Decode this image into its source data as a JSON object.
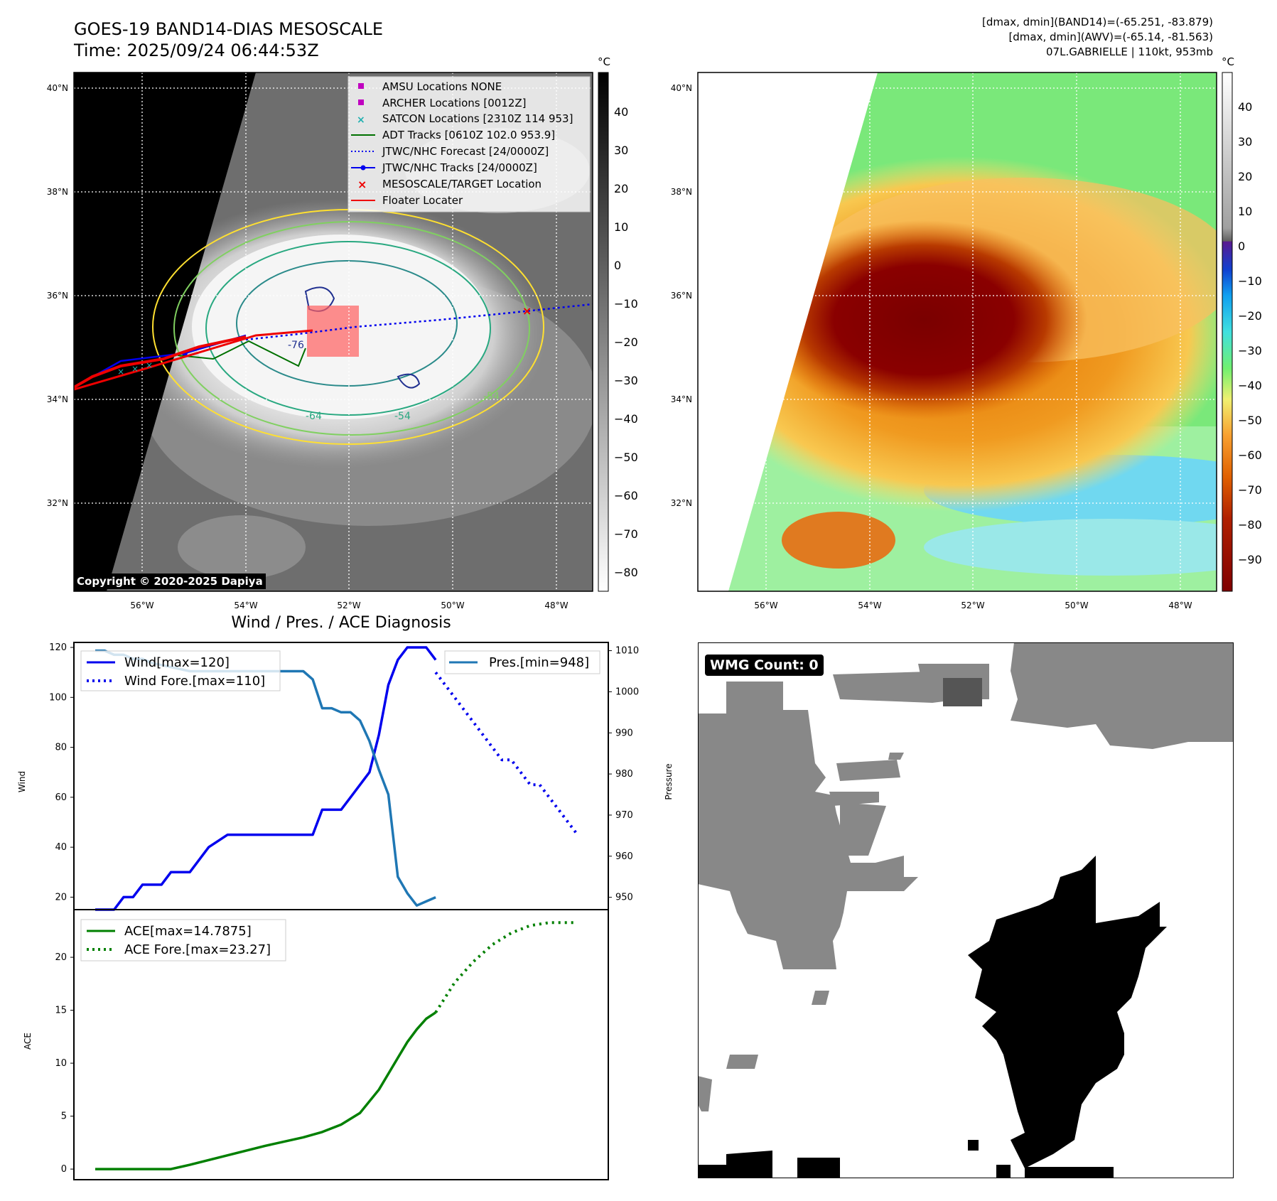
{
  "header": {
    "title_line1": "GOES-19 BAND14-DIAS MESOSCALE",
    "title_line2": "Time: 2025/09/24 06:44:53Z",
    "info_line1": "[dmax, dmin](BAND14)=(-65.251, -83.879)",
    "info_line2": "[dmax, dmin](AWV)=(-65.14, -81.563)",
    "info_line3": "07L.GABRIELLE | 110kt, 953mb"
  },
  "map_left": {
    "lat_ticks": [
      "40°N",
      "38°N",
      "36°N",
      "34°N",
      "32°N"
    ],
    "lon_ticks": [
      "56°W",
      "54°W",
      "52°W",
      "50°W",
      "48°W"
    ],
    "contour_labels": [
      "-64",
      "-54",
      "-54",
      "-76"
    ],
    "colorbar_unit": "°C",
    "colorbar_ticks": [
      "40",
      "30",
      "20",
      "10",
      "0",
      "−10",
      "−20",
      "−30",
      "−40",
      "−50",
      "−60",
      "−70",
      "−80"
    ],
    "copyright": "Copyright © 2020-2025 Dapiya",
    "legend": [
      {
        "label": "AMSU Locations NONE",
        "icon": "magenta-square",
        "color": "#c000c0"
      },
      {
        "label": "ARCHER Locations [0012Z]",
        "icon": "magenta-square",
        "color": "#c000c0"
      },
      {
        "label": "SATCON Locations [2310Z 114 953]",
        "icon": "cyan-x",
        "color": "#20b0b0"
      },
      {
        "label": "ADT Tracks [0610Z 102.0 953.9]",
        "icon": "green-line",
        "color": "#007000"
      },
      {
        "label": "JTWC/NHC Forecast [24/0000Z]",
        "icon": "blue-dotted-line",
        "color": "#0000ee"
      },
      {
        "label": "JTWC/NHC Tracks [24/0000Z]",
        "icon": "blue-line-dot",
        "color": "#0000ee"
      },
      {
        "label": "MESOSCALE/TARGET Location",
        "icon": "red-x",
        "color": "#ee0000"
      },
      {
        "label": "Floater Locater",
        "icon": "red-line",
        "color": "#ee0000"
      }
    ]
  },
  "map_right": {
    "lat_ticks": [
      "40°N",
      "38°N",
      "36°N",
      "34°N",
      "32°N"
    ],
    "lon_ticks": [
      "56°W",
      "54°W",
      "52°W",
      "50°W",
      "48°W"
    ],
    "colorbar_unit": "°C",
    "colorbar_ticks": [
      "40",
      "30",
      "20",
      "10",
      "0",
      "−10",
      "−20",
      "−30",
      "−40",
      "−50",
      "−60",
      "−70",
      "−80",
      "−90"
    ]
  },
  "diagnosis_title": "Wind / Pres. / ACE Diagnosis",
  "wmg_label": "WMG Count: 0",
  "chart_data": [
    {
      "type": "line",
      "title": "Wind / Pres. / ACE Diagnosis",
      "ylabel": "Wind",
      "ylabel_right": "Pressure",
      "ylim": [
        15,
        122
      ],
      "ylim_right": [
        947,
        1012
      ],
      "yticks": [
        20,
        40,
        60,
        80,
        100,
        120
      ],
      "yticks_right": [
        950,
        960,
        970,
        980,
        990,
        1000,
        1010
      ],
      "x_range": [
        0,
        52
      ],
      "legend": [
        "Wind[max=120]",
        "Wind Fore.[max=110]",
        "Pres.[min=948]"
      ],
      "series": [
        {
          "name": "Wind[max=120]",
          "color": "#0000ee",
          "style": "solid",
          "axis": "left",
          "x": [
            0,
            2,
            3,
            4,
            5,
            6,
            7,
            8,
            9,
            10,
            11,
            12,
            14,
            16,
            18,
            20,
            22,
            23,
            24,
            25,
            26,
            27,
            28,
            29,
            30,
            31,
            32,
            33,
            34,
            35,
            36
          ],
          "y": [
            15,
            15,
            20,
            20,
            25,
            25,
            25,
            30,
            30,
            30,
            35,
            40,
            45,
            45,
            45,
            45,
            45,
            45,
            55,
            55,
            55,
            60,
            65,
            70,
            85,
            105,
            115,
            120,
            120,
            120,
            115
          ]
        },
        {
          "name": "Wind Fore.[max=110]",
          "color": "#0000ee",
          "style": "dotted",
          "axis": "left",
          "x": [
            36,
            37,
            38,
            39,
            40,
            41,
            42,
            43,
            44,
            45,
            46,
            47,
            48,
            49,
            50,
            51
          ],
          "y": [
            110,
            105,
            100,
            95,
            90,
            85,
            80,
            75,
            75,
            70,
            65,
            65,
            60,
            55,
            50,
            45
          ]
        },
        {
          "name": "Pres.[min=948]",
          "color": "#1f77b4",
          "style": "solid",
          "axis": "right",
          "x": [
            0,
            1,
            2,
            3,
            4,
            5,
            6,
            8,
            10,
            12,
            14,
            16,
            18,
            20,
            22,
            23,
            24,
            25,
            26,
            27,
            28,
            29,
            30,
            31,
            32,
            33,
            34,
            35,
            36
          ],
          "y": [
            1010,
            1010,
            1009,
            1009,
            1008,
            1008,
            1007,
            1006,
            1005,
            1005,
            1005,
            1005,
            1005,
            1005,
            1005,
            1003,
            996,
            996,
            995,
            995,
            993,
            988,
            981,
            975,
            955,
            951,
            948,
            949,
            950
          ]
        }
      ]
    },
    {
      "type": "line",
      "ylabel": "ACE",
      "ylim": [
        -1,
        24.5
      ],
      "yticks": [
        0,
        5,
        10,
        15,
        20
      ],
      "x_range": [
        0,
        52
      ],
      "legend": [
        "ACE[max=14.7875]",
        "ACE Fore.[max=23.27]"
      ],
      "series": [
        {
          "name": "ACE[max=14.7875]",
          "color": "#008000",
          "style": "solid",
          "x": [
            0,
            8,
            10,
            14,
            18,
            22,
            24,
            26,
            28,
            30,
            31,
            32,
            33,
            34,
            35,
            36
          ],
          "y": [
            0,
            0,
            0.4,
            1.3,
            2.2,
            3.0,
            3.5,
            4.2,
            5.3,
            7.5,
            9.0,
            10.5,
            12.0,
            13.2,
            14.2,
            14.79
          ]
        },
        {
          "name": "ACE Fore.[max=23.27]",
          "color": "#008000",
          "style": "dotted",
          "x": [
            36,
            38,
            40,
            42,
            44,
            46,
            48,
            50,
            51
          ],
          "y": [
            14.79,
            17.6,
            19.6,
            21.2,
            22.3,
            23.0,
            23.27,
            23.27,
            23.27
          ]
        }
      ]
    }
  ]
}
